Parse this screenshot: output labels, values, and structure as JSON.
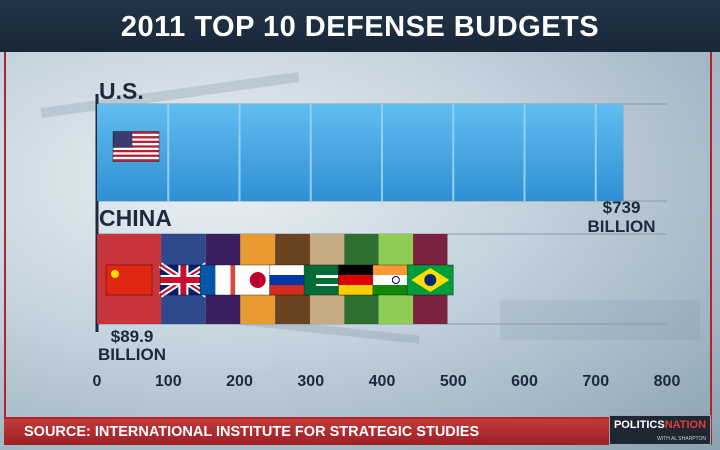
{
  "title": "2011 TOP 10 DEFENSE BUDGETS",
  "source": "SOURCE: INTERNATIONAL INSTITUTE FOR STRATEGIC STUDIES",
  "logo": {
    "text_main": "POLITICS",
    "text_accent": "NATION",
    "tagline": "WITH AL SHARPTON"
  },
  "colors": {
    "us_bar": "#3fa3de",
    "title_bar": "#1d2e40",
    "source_bar": "#b0282e",
    "axis_text": "#1c2b3b"
  },
  "chart_data": {
    "type": "bar",
    "orientation": "horizontal",
    "title": "2011 TOP 10 DEFENSE BUDGETS",
    "xlim": [
      0,
      800
    ],
    "x_ticks": [
      0,
      100,
      200,
      300,
      400,
      500,
      600,
      700,
      800
    ],
    "grid": true,
    "unit": "billion USD",
    "bars": [
      {
        "label": "U.S.",
        "value_label": [
          "$739",
          "BILLION"
        ],
        "segments": [
          {
            "country": "United States",
            "flag_icon": "us-flag-icon",
            "value": 739,
            "color": "#3fa3de"
          }
        ]
      },
      {
        "label": "CHINA",
        "value_label": [
          "$89.9",
          "BILLION"
        ],
        "segments": [
          {
            "country": "China",
            "flag_icon": "china-flag-icon",
            "value": 89.9,
            "color": "#c8343a"
          },
          {
            "country": "United Kingdom",
            "flag_icon": "uk-flag-icon",
            "value": 62.7,
            "color": "#2e4a8c"
          },
          {
            "country": "France",
            "flag_icon": "france-flag-icon",
            "value": 48.6,
            "color": "#3b1f5e"
          },
          {
            "country": "Japan",
            "flag_icon": "japan-flag-icon",
            "value": 48.8,
            "color": "#ea9a33"
          },
          {
            "country": "Russia",
            "flag_icon": "russia-flag-icon",
            "value": 48.9,
            "color": "#6a4421"
          },
          {
            "country": "Saudi Arabia",
            "flag_icon": "saudi-flag-icon",
            "value": 48.2,
            "color": "#c6aa82"
          },
          {
            "country": "Germany",
            "flag_icon": "germany-flag-icon",
            "value": 48.1,
            "color": "#2e6e2e"
          },
          {
            "country": "India",
            "flag_icon": "india-flag-icon",
            "value": 48.4,
            "color": "#8fcc55"
          },
          {
            "country": "Brazil",
            "flag_icon": "brazil-flag-icon",
            "value": 48.3,
            "color": "#7a2240"
          }
        ]
      }
    ]
  }
}
